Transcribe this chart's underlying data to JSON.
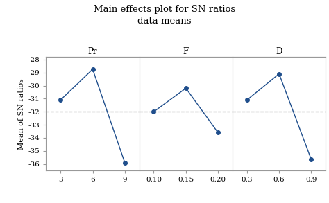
{
  "title_line1": "Main effects plot for SN ratios",
  "title_line2": "data means",
  "ylabel": "Mean of SN ratios",
  "panels": [
    {
      "label": "Pr",
      "x": [
        3,
        6,
        9
      ],
      "x_tick_labels": [
        "3",
        "6",
        "9"
      ],
      "y": [
        -31.1,
        -28.75,
        -35.9
      ]
    },
    {
      "label": "F",
      "x": [
        0.1,
        0.15,
        0.2
      ],
      "x_tick_labels": [
        "0.10",
        "0.15",
        "0.20"
      ],
      "y": [
        -32.0,
        -30.2,
        -33.6
      ]
    },
    {
      "label": "D",
      "x": [
        0.3,
        0.6,
        0.9
      ],
      "x_tick_labels": [
        "0.3",
        "0.6",
        "0.9"
      ],
      "y": [
        -31.1,
        -29.1,
        -35.65
      ]
    }
  ],
  "ylim": [
    -36.5,
    -27.8
  ],
  "yticks": [
    -28,
    -29,
    -30,
    -31,
    -32,
    -33,
    -34,
    -35,
    -36
  ],
  "dashed_line_y": -32.0,
  "line_color": "#1f4e8c",
  "marker": "o",
  "marker_size": 4,
  "dashed_color": "#888888",
  "bg_color": "#ffffff",
  "panel_bg": "#ffffff",
  "title_fontsize": 9.5,
  "label_fontsize": 8.5,
  "tick_fontsize": 7.5,
  "ylabel_fontsize": 8,
  "spine_color": "#999999"
}
